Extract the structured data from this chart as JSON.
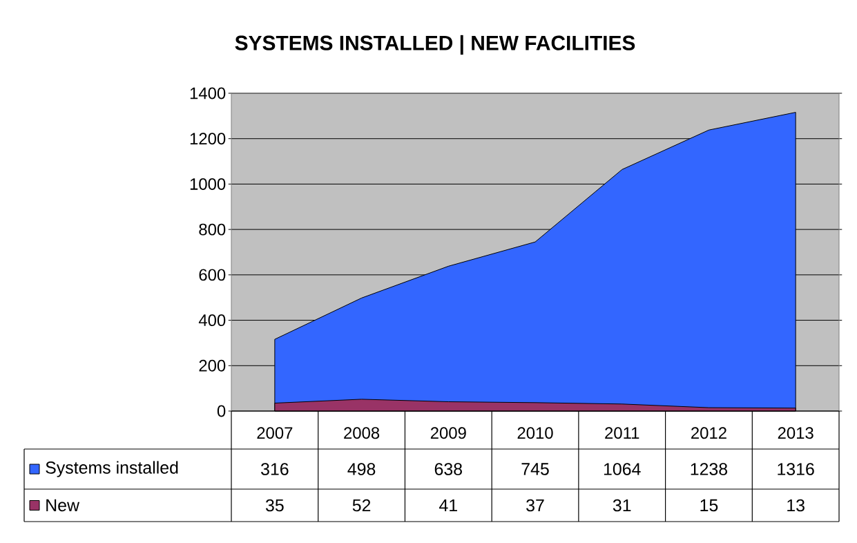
{
  "chart_data": {
    "type": "area",
    "title": "SYSTEMS INSTALLED  |  NEW FACILITIES",
    "categories": [
      "2007",
      "2008",
      "2009",
      "2010",
      "2011",
      "2012",
      "2013"
    ],
    "series": [
      {
        "name": "Systems installed",
        "color": "#3366ff",
        "values": [
          316,
          498,
          638,
          745,
          1064,
          1238,
          1316
        ]
      },
      {
        "name": "New",
        "color": "#993366",
        "values": [
          35,
          52,
          41,
          37,
          31,
          15,
          13
        ]
      }
    ],
    "ylim": [
      0,
      1400
    ],
    "yticks": [
      0,
      200,
      400,
      600,
      800,
      1000,
      1200,
      1400
    ],
    "grid": "y",
    "legend": "bottom left",
    "data_labels": true
  }
}
